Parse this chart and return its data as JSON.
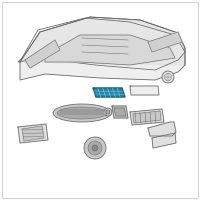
{
  "bg_color": "#ffffff",
  "line_color": "#666666",
  "fill_light": "#e0e0e0",
  "fill_mid": "#c8c8c8",
  "fill_dark": "#aaaaaa",
  "highlight_color": "#2288aa",
  "figsize": [
    2.0,
    2.0
  ],
  "dpi": 100
}
